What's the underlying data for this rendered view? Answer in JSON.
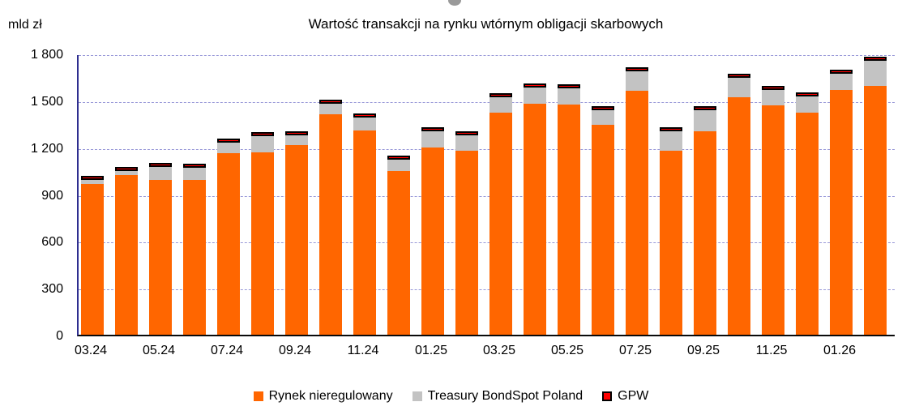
{
  "chart": {
    "unit_label": "mld zł",
    "title": "Wartość transakcji na rynku wtórnym obligacji skarbowych"
  },
  "chart_data": {
    "type": "bar",
    "stacked": true,
    "title": "Wartość transakcji na rynku wtórnym obligacji skarbowych",
    "ylabel": "mld zł",
    "xlabel": "",
    "ylim": [
      0,
      1800
    ],
    "ytick_interval": 300,
    "ytick_labels": [
      "0",
      "300",
      "600",
      "900",
      "1 200",
      "1 500",
      "1 800"
    ],
    "grid": "horizontal-dashed",
    "legend_position": "bottom",
    "categories": [
      "03.24",
      "04.24",
      "05.24",
      "06.24",
      "07.24",
      "08.24",
      "09.24",
      "10.24",
      "11.24",
      "12.24",
      "01.25",
      "02.25",
      "03.25",
      "04.25",
      "05.25",
      "06.25",
      "07.25",
      "08.25",
      "09.25",
      "10.25",
      "11.25",
      "12.25",
      "01.26",
      "02.26"
    ],
    "x_tick_labels": [
      "03.24",
      "05.24",
      "07.24",
      "09.24",
      "11.24",
      "01.25",
      "03.25",
      "05.25",
      "07.25",
      "09.25",
      "11.25",
      "01.26"
    ],
    "series": [
      {
        "name": "Rynek nieregulowany",
        "color": "#FF6600",
        "values": [
          965,
          1020,
          990,
          990,
          1160,
          1170,
          1215,
          1410,
          1310,
          1050,
          1200,
          1180,
          1420,
          1480,
          1475,
          1345,
          1560,
          1180,
          1300,
          1520,
          1470,
          1420,
          1565,
          1595
        ]
      },
      {
        "name": "Treasury BondSpot Poland",
        "color": "#C3C3C3",
        "values": [
          25,
          30,
          85,
          80,
          70,
          100,
          60,
          70,
          80,
          70,
          100,
          95,
          100,
          100,
          100,
          90,
          125,
          120,
          135,
          125,
          95,
          105,
          105,
          160
        ]
      },
      {
        "name": "GPW",
        "color": "#FF0000",
        "border_color": "#000000",
        "values": [
          5,
          5,
          5,
          5,
          5,
          5,
          5,
          5,
          5,
          5,
          5,
          5,
          5,
          5,
          5,
          5,
          5,
          5,
          5,
          5,
          5,
          5,
          5,
          5
        ]
      }
    ]
  }
}
